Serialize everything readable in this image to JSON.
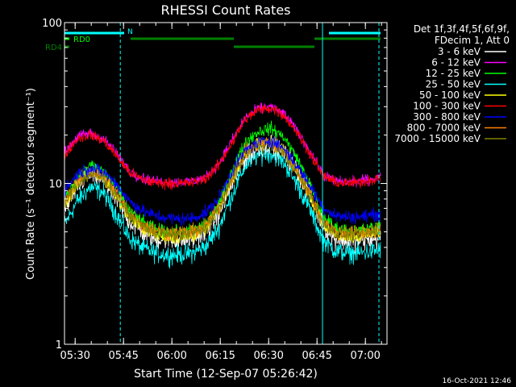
{
  "chart_data": {
    "type": "line",
    "title": "RHESSI Count Rates",
    "xlabel": "Start Time (12-Sep-07 05:26:42)",
    "ylabel": "Count Rate (s⁻¹ detector segment⁻¹)",
    "yscale": "log",
    "ylim": [
      1,
      100
    ],
    "xlim_minutes": [
      0,
      100
    ],
    "x_ticks": [
      {
        "label": "05:30",
        "minute": 3.3
      },
      {
        "label": "05:45",
        "minute": 18.3
      },
      {
        "label": "06:00",
        "minute": 33.3
      },
      {
        "label": "06:15",
        "minute": 48.3
      },
      {
        "label": "06:30",
        "minute": 63.3
      },
      {
        "label": "06:45",
        "minute": 78.3
      },
      {
        "label": "07:00",
        "minute": 93.3
      }
    ],
    "y_tick_labels": [
      "1",
      "10",
      "100"
    ],
    "legend_header": [
      "Det 1f,3f,4f,5f,6f,9f,",
      "FDecim 1, Att 0"
    ],
    "legend_position": "right",
    "footer_date": "16-Oct-2021 12:46",
    "flags": [
      {
        "label": "RD0",
        "color": "#00ff00",
        "segments": [
          [
            0,
            16.7
          ]
        ]
      },
      {
        "label": "RD4",
        "color": "#008000",
        "segments": [
          [
            0,
            18.7
          ]
        ]
      }
    ],
    "flag_markers": [
      {
        "label": "N",
        "minute": 19
      }
    ],
    "flag_bars": [
      {
        "row": 0,
        "color": "#00ffff",
        "segments": [
          [
            0,
            18.5
          ],
          [
            82,
            98
          ]
        ]
      },
      {
        "row": 1,
        "color": "#008000",
        "segments": [
          [
            20.5,
            52.5
          ],
          [
            77.5,
            98
          ]
        ]
      },
      {
        "row": 2,
        "color": "#008000",
        "segments": [
          [
            52.5,
            77.5
          ]
        ]
      }
    ],
    "vertical_lines": [
      {
        "minute": 17.3,
        "style": "dashed",
        "color": "#00ffff"
      },
      {
        "minute": 80.0,
        "style": "solid",
        "color": "#00ffff"
      },
      {
        "minute": 97.5,
        "style": "dashed",
        "color": "#00ffff"
      }
    ],
    "x": [
      0,
      4,
      8,
      12,
      16,
      20,
      24,
      28,
      32,
      36,
      40,
      44,
      48,
      52,
      56,
      60,
      64,
      68,
      72,
      76,
      80,
      84,
      88,
      92,
      96,
      98
    ],
    "series": [
      {
        "name": "3 - 6 keV",
        "color": "#ffffff",
        "values": [
          6.8,
          9.5,
          11.5,
          10.5,
          8.0,
          5.8,
          5.0,
          4.5,
          4.5,
          4.4,
          4.5,
          5.0,
          6.5,
          10.0,
          14.5,
          16.5,
          17.5,
          15.5,
          12.0,
          8.5,
          5.5,
          4.5,
          4.4,
          4.4,
          4.5,
          4.5
        ]
      },
      {
        "name": "6 - 12 keV",
        "color": "#ff00ff",
        "values": [
          15.5,
          19.5,
          20.5,
          19.0,
          15.5,
          12.0,
          10.8,
          10.3,
          10.2,
          10.2,
          10.3,
          11.0,
          13.5,
          18.5,
          25.5,
          29.0,
          30.0,
          27.0,
          21.5,
          16.0,
          11.5,
          10.3,
          10.2,
          10.4,
          10.8,
          11.0
        ]
      },
      {
        "name": "12 - 25 keV",
        "color": "#00ff00",
        "values": [
          8.0,
          11.0,
          13.0,
          12.0,
          9.5,
          6.8,
          5.8,
          5.2,
          5.0,
          5.0,
          5.1,
          5.7,
          7.5,
          12.0,
          18.0,
          21.0,
          22.0,
          19.5,
          14.5,
          10.0,
          6.3,
          5.3,
          5.1,
          5.1,
          5.3,
          5.4
        ]
      },
      {
        "name": "25 - 50 keV",
        "color": "#00ffff",
        "values": [
          5.5,
          7.8,
          9.5,
          8.8,
          6.5,
          4.6,
          4.0,
          3.7,
          3.6,
          3.6,
          3.7,
          4.1,
          5.4,
          8.5,
          13.0,
          15.0,
          15.5,
          13.5,
          10.0,
          7.0,
          4.5,
          3.8,
          3.7,
          3.7,
          3.8,
          3.9
        ]
      },
      {
        "name": "50 - 100 keV",
        "color": "#ffff00",
        "values": [
          7.2,
          10.0,
          12.0,
          11.0,
          8.5,
          6.2,
          5.3,
          4.8,
          4.6,
          4.6,
          4.7,
          5.3,
          6.9,
          10.8,
          15.5,
          17.5,
          18.0,
          16.0,
          12.0,
          8.5,
          5.7,
          4.8,
          4.7,
          4.7,
          4.9,
          5.0
        ]
      },
      {
        "name": "100 - 300 keV",
        "color": "#ff0000",
        "values": [
          15.0,
          19.0,
          20.0,
          18.5,
          15.0,
          11.8,
          10.6,
          10.1,
          10.0,
          10.0,
          10.1,
          10.8,
          13.2,
          18.0,
          25.0,
          28.5,
          29.5,
          26.5,
          21.0,
          15.5,
          11.3,
          10.1,
          10.0,
          10.2,
          10.6,
          10.8
        ]
      },
      {
        "name": "300 - 800 keV",
        "color": "#0000ff",
        "values": [
          9.0,
          11.5,
          12.5,
          11.8,
          10.0,
          7.8,
          6.8,
          6.3,
          6.1,
          6.0,
          6.1,
          6.6,
          8.2,
          12.0,
          16.0,
          18.0,
          18.5,
          16.5,
          13.0,
          9.8,
          7.2,
          6.3,
          6.2,
          6.2,
          6.4,
          6.5
        ]
      },
      {
        "name": "800 - 7000 keV",
        "color": "#ff8000",
        "values": [
          7.8,
          10.3,
          11.8,
          11.0,
          8.8,
          6.5,
          5.6,
          5.1,
          4.9,
          4.9,
          5.0,
          5.5,
          7.1,
          11.0,
          15.5,
          17.5,
          18.0,
          16.0,
          12.0,
          8.8,
          5.9,
          5.0,
          4.9,
          4.9,
          5.1,
          5.2
        ]
      },
      {
        "name": "7000 - 15000 keV",
        "color": "#808000",
        "values": [
          7.5,
          10.0,
          11.5,
          10.8,
          8.6,
          6.4,
          5.5,
          5.0,
          4.8,
          4.8,
          4.9,
          5.4,
          7.0,
          10.8,
          15.2,
          17.2,
          17.8,
          15.8,
          11.8,
          8.6,
          5.8,
          4.9,
          4.8,
          4.8,
          5.0,
          5.1
        ]
      }
    ]
  }
}
